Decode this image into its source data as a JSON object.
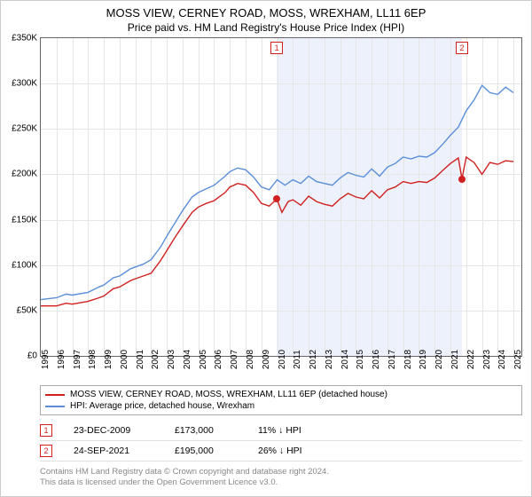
{
  "title": "MOSS VIEW, CERNEY ROAD, MOSS, WREXHAM, LL11 6EP",
  "subtitle": "Price paid vs. HM Land Registry's House Price Index (HPI)",
  "chart": {
    "type": "line",
    "background_color": "#ffffff",
    "grid_color": "#e5e5e5",
    "shaded_region_color": "#ecf1fb",
    "shaded_from_x": 2009.98,
    "shaded_to_x": 2021.73,
    "xlim": [
      1995,
      2025.5
    ],
    "ylim": [
      0,
      350000
    ],
    "ytick_step": 50000,
    "yticks": [
      "£0",
      "£50K",
      "£100K",
      "£150K",
      "£200K",
      "£250K",
      "£300K",
      "£350K"
    ],
    "xticks": [
      "1995",
      "1996",
      "1997",
      "1998",
      "1999",
      "2000",
      "2001",
      "2002",
      "2003",
      "2004",
      "2005",
      "2006",
      "2007",
      "2008",
      "2009",
      "2010",
      "2011",
      "2012",
      "2013",
      "2014",
      "2015",
      "2016",
      "2017",
      "2018",
      "2019",
      "2020",
      "2021",
      "2022",
      "2023",
      "2024",
      "2025"
    ],
    "label_fontsize": 10,
    "line_width": 1.4,
    "series": [
      {
        "name": "MOSS VIEW, CERNEY ROAD, MOSS, WREXHAM, LL11 6EP (detached house)",
        "color": "#d02020",
        "data": [
          [
            1995,
            55000
          ],
          [
            1996,
            55000
          ],
          [
            1996.6,
            58000
          ],
          [
            1997,
            57000
          ],
          [
            1998,
            60000
          ],
          [
            1998.7,
            64000
          ],
          [
            1999,
            66000
          ],
          [
            1999.6,
            74000
          ],
          [
            2000,
            76000
          ],
          [
            2000.7,
            83000
          ],
          [
            2001,
            85000
          ],
          [
            2001.5,
            88000
          ],
          [
            2002,
            91000
          ],
          [
            2002.6,
            105000
          ],
          [
            2003,
            116000
          ],
          [
            2003.5,
            130000
          ],
          [
            2004,
            143000
          ],
          [
            2004.6,
            158000
          ],
          [
            2005,
            164000
          ],
          [
            2005.5,
            168000
          ],
          [
            2006,
            171000
          ],
          [
            2006.7,
            180000
          ],
          [
            2007,
            186000
          ],
          [
            2007.5,
            190000
          ],
          [
            2008,
            188000
          ],
          [
            2008.5,
            180000
          ],
          [
            2009,
            168000
          ],
          [
            2009.5,
            165000
          ],
          [
            2009.98,
            173000
          ],
          [
            2010.3,
            158000
          ],
          [
            2010.7,
            170000
          ],
          [
            2011,
            172000
          ],
          [
            2011.5,
            166000
          ],
          [
            2012,
            176000
          ],
          [
            2012.5,
            170000
          ],
          [
            2013,
            167000
          ],
          [
            2013.5,
            165000
          ],
          [
            2014,
            173000
          ],
          [
            2014.5,
            179000
          ],
          [
            2015,
            175000
          ],
          [
            2015.5,
            173000
          ],
          [
            2016,
            182000
          ],
          [
            2016.5,
            174000
          ],
          [
            2017,
            183000
          ],
          [
            2017.5,
            186000
          ],
          [
            2018,
            192000
          ],
          [
            2018.5,
            190000
          ],
          [
            2019,
            192000
          ],
          [
            2019.5,
            191000
          ],
          [
            2020,
            196000
          ],
          [
            2020.5,
            204000
          ],
          [
            2021,
            212000
          ],
          [
            2021.5,
            218000
          ],
          [
            2021.73,
            195000
          ],
          [
            2022,
            219000
          ],
          [
            2022.5,
            213000
          ],
          [
            2023,
            200000
          ],
          [
            2023.5,
            213000
          ],
          [
            2024,
            211000
          ],
          [
            2024.5,
            215000
          ],
          [
            2025,
            214000
          ]
        ]
      },
      {
        "name": "HPI: Average price, detached house, Wrexham",
        "color": "#5a8fd8",
        "data": [
          [
            1995,
            62000
          ],
          [
            1996,
            64000
          ],
          [
            1996.6,
            68000
          ],
          [
            1997,
            67000
          ],
          [
            1998,
            70000
          ],
          [
            1998.7,
            76000
          ],
          [
            1999,
            78000
          ],
          [
            1999.6,
            86000
          ],
          [
            2000,
            88000
          ],
          [
            2000.7,
            96000
          ],
          [
            2001,
            98000
          ],
          [
            2001.5,
            101000
          ],
          [
            2002,
            106000
          ],
          [
            2002.6,
            120000
          ],
          [
            2003,
            132000
          ],
          [
            2003.5,
            146000
          ],
          [
            2004,
            160000
          ],
          [
            2004.6,
            175000
          ],
          [
            2005,
            180000
          ],
          [
            2005.5,
            184000
          ],
          [
            2006,
            188000
          ],
          [
            2006.7,
            198000
          ],
          [
            2007,
            203000
          ],
          [
            2007.5,
            207000
          ],
          [
            2008,
            205000
          ],
          [
            2008.5,
            197000
          ],
          [
            2009,
            186000
          ],
          [
            2009.5,
            183000
          ],
          [
            2010,
            194000
          ],
          [
            2010.5,
            188000
          ],
          [
            2011,
            194000
          ],
          [
            2011.5,
            190000
          ],
          [
            2012,
            198000
          ],
          [
            2012.5,
            192000
          ],
          [
            2013,
            190000
          ],
          [
            2013.5,
            188000
          ],
          [
            2014,
            196000
          ],
          [
            2014.5,
            202000
          ],
          [
            2015,
            199000
          ],
          [
            2015.5,
            197000
          ],
          [
            2016,
            206000
          ],
          [
            2016.5,
            198000
          ],
          [
            2017,
            208000
          ],
          [
            2017.5,
            212000
          ],
          [
            2018,
            219000
          ],
          [
            2018.5,
            217000
          ],
          [
            2019,
            220000
          ],
          [
            2019.5,
            219000
          ],
          [
            2020,
            224000
          ],
          [
            2020.5,
            233000
          ],
          [
            2021,
            243000
          ],
          [
            2021.5,
            252000
          ],
          [
            2022,
            270000
          ],
          [
            2022.5,
            282000
          ],
          [
            2023,
            298000
          ],
          [
            2023.5,
            290000
          ],
          [
            2024,
            288000
          ],
          [
            2024.5,
            296000
          ],
          [
            2025,
            290000
          ]
        ]
      }
    ],
    "markers": [
      {
        "num": "1",
        "x": 2009.98,
        "y": 173000
      },
      {
        "num": "2",
        "x": 2021.73,
        "y": 195000
      }
    ]
  },
  "legend": {
    "items": [
      {
        "color": "#d02020",
        "label": "MOSS VIEW, CERNEY ROAD, MOSS, WREXHAM, LL11 6EP (detached house)"
      },
      {
        "color": "#5a8fd8",
        "label": "HPI: Average price, detached house, Wrexham"
      }
    ]
  },
  "sales": [
    {
      "num": "1",
      "date": "23-DEC-2009",
      "price": "£173,000",
      "diff": "11% ↓ HPI"
    },
    {
      "num": "2",
      "date": "24-SEP-2021",
      "price": "£195,000",
      "diff": "26% ↓ HPI"
    }
  ],
  "footer": {
    "line1": "Contains HM Land Registry data © Crown copyright and database right 2024.",
    "line2": "This data is licensed under the Open Government Licence v3.0."
  }
}
